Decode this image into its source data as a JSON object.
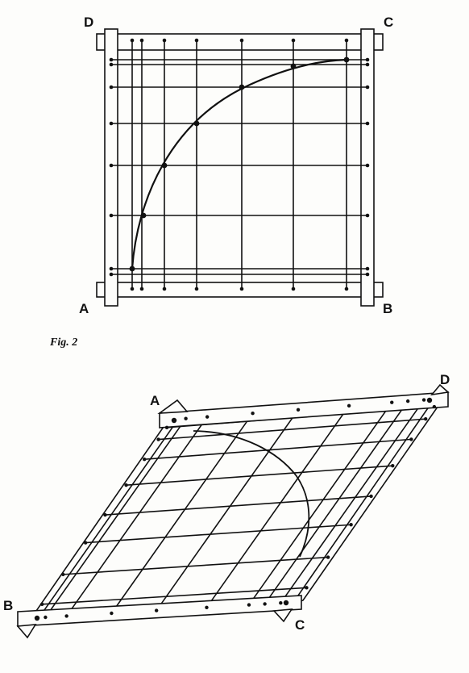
{
  "figure1": {
    "corners": {
      "top_left": "D",
      "top_right": "C",
      "bottom_left": "A",
      "bottom_right": "B"
    }
  },
  "figure2": {
    "caption": "Fig. 2",
    "corners": {
      "top_left": "A",
      "top_right": "D",
      "bottom_left": "B",
      "bottom_right": "C"
    }
  },
  "colors": {
    "ink": "#111111",
    "paper": "#fdfdfb"
  }
}
